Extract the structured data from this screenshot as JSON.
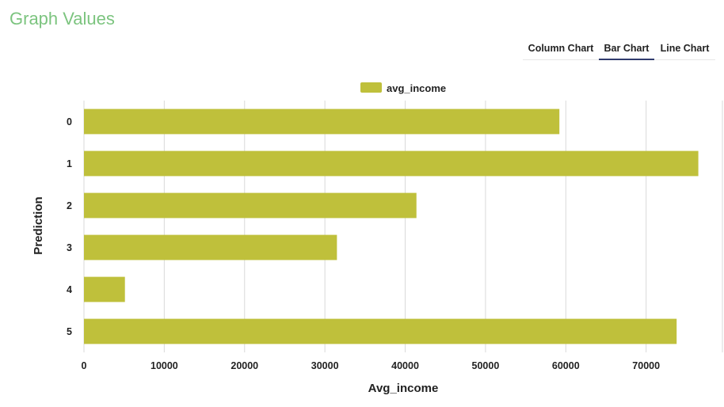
{
  "header": {
    "title": "Graph Values"
  },
  "tabs": [
    {
      "label": "Column Chart",
      "active": false
    },
    {
      "label": "Bar Chart",
      "active": true
    },
    {
      "label": "Line Chart",
      "active": false
    }
  ],
  "colors": {
    "bar": "#bfc03b",
    "grid": "#d9d9d9",
    "title": "#7cc47f",
    "tab_underline": "#303b6e"
  },
  "chart_data": {
    "type": "bar",
    "orientation": "horizontal",
    "categories": [
      "0",
      "1",
      "2",
      "3",
      "4",
      "5"
    ],
    "series": [
      {
        "name": "avg_income",
        "values": [
          59200,
          76500,
          41400,
          31500,
          5100,
          73800
        ]
      }
    ],
    "xlabel": "Avg_income",
    "ylabel": "Prediction",
    "xlim": [
      0,
      79500
    ],
    "xticks": [
      0,
      10000,
      20000,
      30000,
      40000,
      50000,
      60000,
      70000
    ],
    "grid": true,
    "legend_position": "top"
  }
}
